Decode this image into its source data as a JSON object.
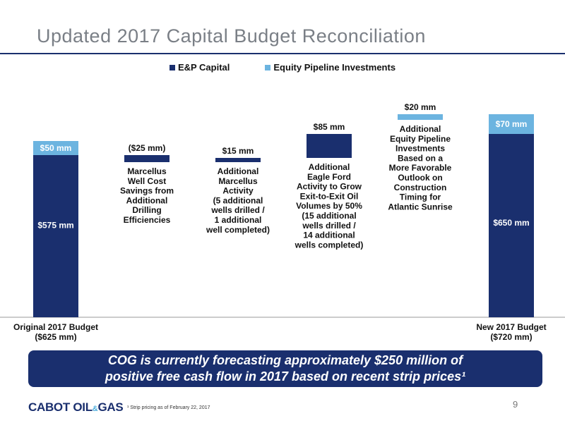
{
  "slide": {
    "title": "Updated 2017 Capital Budget Reconciliation",
    "callout_line1": "COG is currently forecasting approximately $250 million of",
    "callout_line2": "positive free cash flow in 2017 based on recent strip prices¹",
    "logo_left": "CABOT OIL",
    "logo_amp": "&",
    "logo_right": "GAS",
    "footnote": "¹   Strip pricing as of February 22, 2017",
    "page_number": "9"
  },
  "colors": {
    "ep_capital": "#1a2f6e",
    "pipeline": "#6cb4e0",
    "baseline": "#999999"
  },
  "chart_data": {
    "type": "bar",
    "subtype": "waterfall",
    "legend": [
      "E&P Capital",
      "Equity Pipeline Investments"
    ],
    "legend_position": "top-center",
    "ylim": [
      0,
      770
    ],
    "steps": [
      {
        "id": "original",
        "kind": "total",
        "ep": 575,
        "pipe": 50,
        "ep_label": "$575 mm",
        "pipe_label": "$50 mm",
        "category": [
          "Original 2017 Budget",
          "($625 mm)"
        ]
      },
      {
        "id": "marcellus_savings",
        "kind": "delta",
        "series": "ep",
        "value": -25,
        "label": "($25 mm)",
        "desc": [
          "Marcellus",
          "Well Cost",
          "Savings from",
          "Additional",
          "Drilling",
          "Efficiencies"
        ]
      },
      {
        "id": "marcellus_activity",
        "kind": "delta",
        "series": "ep",
        "value": 15,
        "label": "$15 mm",
        "desc": [
          "Additional",
          "Marcellus",
          "Activity",
          "(5 additional",
          "wells drilled /",
          "1 additional",
          "well completed)"
        ]
      },
      {
        "id": "eagle_ford",
        "kind": "delta",
        "series": "ep",
        "value": 85,
        "label": "$85 mm",
        "desc": [
          "Additional",
          "Eagle Ford",
          "Activity to Grow",
          "Exit-to-Exit Oil",
          "Volumes by 50%",
          "(15 additional",
          "wells drilled /",
          "14 additional",
          "wells completed)"
        ]
      },
      {
        "id": "pipeline_invest",
        "kind": "delta",
        "series": "pipe",
        "value": 20,
        "label": "$20 mm",
        "desc": [
          "Additional",
          "Equity Pipeline",
          "Investments",
          "Based on a",
          "More Favorable",
          "Outlook on",
          "Construction",
          "Timing for",
          "Atlantic Sunrise"
        ]
      },
      {
        "id": "new",
        "kind": "total",
        "ep": 650,
        "pipe": 70,
        "ep_label": "$650 mm",
        "pipe_label": "$70 mm",
        "category": [
          "New 2017 Budget",
          "($720 mm)"
        ]
      }
    ]
  }
}
